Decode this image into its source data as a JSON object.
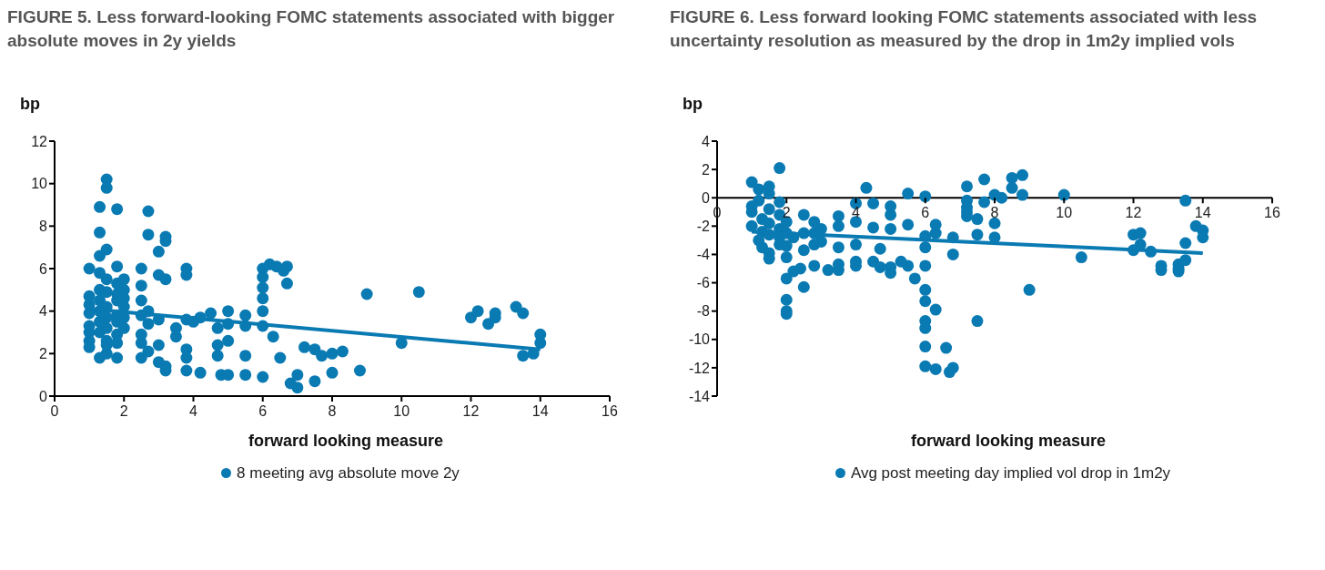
{
  "chart_data": [
    {
      "type": "scatter",
      "title": "FIGURE 5. Less forward-looking FOMC statements associated with bigger absolute moves in 2y yields",
      "xlabel": "forward looking measure",
      "ylabel": "bp",
      "xlim": [
        0,
        16
      ],
      "ylim": [
        0,
        12
      ],
      "xticks": [
        0,
        2,
        4,
        6,
        8,
        10,
        12,
        14,
        16
      ],
      "yticks": [
        0,
        2,
        4,
        6,
        8,
        10,
        12
      ],
      "grid": false,
      "legend": "bottom",
      "marker": "circle",
      "series": [
        {
          "name": "8 meeting avg absolute move 2y",
          "color": "#0a7ab3",
          "x": [
            1.0,
            1.0,
            1.0,
            1.0,
            1.0,
            1.0,
            1.0,
            1.0,
            1.3,
            1.3,
            1.3,
            1.3,
            1.3,
            1.3,
            1.3,
            1.3,
            1.3,
            1.3,
            1.5,
            1.5,
            1.5,
            1.5,
            1.5,
            1.5,
            1.5,
            1.5,
            1.5,
            1.5,
            1.5,
            1.8,
            1.8,
            1.8,
            1.8,
            1.8,
            1.8,
            1.8,
            1.8,
            1.8,
            1.8,
            2.0,
            2.0,
            2.0,
            2.0,
            2.0,
            2.0,
            2.5,
            2.5,
            2.5,
            2.5,
            2.5,
            2.5,
            2.5,
            2.7,
            2.7,
            2.7,
            2.7,
            2.7,
            3.0,
            3.0,
            3.0,
            3.0,
            3.0,
            3.2,
            3.2,
            3.2,
            3.2,
            3.2,
            3.5,
            3.5,
            3.8,
            3.8,
            3.8,
            3.8,
            3.8,
            3.8,
            4.0,
            4.2,
            4.2,
            4.5,
            4.7,
            4.7,
            4.7,
            4.8,
            5.0,
            5.0,
            5.0,
            5.0,
            5.5,
            5.5,
            5.5,
            5.5,
            6.0,
            6.0,
            6.0,
            6.0,
            6.0,
            6.0,
            6.0,
            6.2,
            6.4,
            6.6,
            6.7,
            6.7,
            6.3,
            6.5,
            6.8,
            7.0,
            7.0,
            7.2,
            7.5,
            7.5,
            7.7,
            8.0,
            8.3,
            8.0,
            8.8,
            9.0,
            10.0,
            10.5,
            12.0,
            12.2,
            12.5,
            12.7,
            12.7,
            13.3,
            13.5,
            13.5,
            13.8,
            14.0,
            14.0
          ],
          "values": [
            6.0,
            4.7,
            4.3,
            3.9,
            3.3,
            3.0,
            2.6,
            2.3,
            8.9,
            7.7,
            6.6,
            5.8,
            5.0,
            4.5,
            4.0,
            3.5,
            3.0,
            1.8,
            10.2,
            9.8,
            6.9,
            5.5,
            4.9,
            4.2,
            3.7,
            3.2,
            2.6,
            2.4,
            2.0,
            8.8,
            6.1,
            5.3,
            4.8,
            4.5,
            3.8,
            3.5,
            2.9,
            2.5,
            1.8,
            5.5,
            5.0,
            4.6,
            4.2,
            3.7,
            3.2,
            6.0,
            5.2,
            4.5,
            3.8,
            2.9,
            2.5,
            1.8,
            8.7,
            7.6,
            4.0,
            3.4,
            2.1,
            6.8,
            5.7,
            3.6,
            2.4,
            1.6,
            7.5,
            7.3,
            5.5,
            1.4,
            1.2,
            3.2,
            2.8,
            6.0,
            5.7,
            3.6,
            2.2,
            1.8,
            1.2,
            3.5,
            3.7,
            1.1,
            3.9,
            3.2,
            2.4,
            1.9,
            1.0,
            4.0,
            3.4,
            2.6,
            1.0,
            3.8,
            3.3,
            1.9,
            1.0,
            6.0,
            5.6,
            5.1,
            4.6,
            4.0,
            3.3,
            0.9,
            6.2,
            6.1,
            5.9,
            6.1,
            5.3,
            2.8,
            1.8,
            0.6,
            0.4,
            1.0,
            2.3,
            2.2,
            0.7,
            1.9,
            2.0,
            2.1,
            1.1,
            1.2,
            4.8,
            2.5,
            4.9,
            3.7,
            4.0,
            3.4,
            3.7,
            3.9,
            4.2,
            1.9,
            3.9,
            2.0,
            2.9,
            2.5
          ]
        },
        {
          "type": "line",
          "color": "#0a7ab3",
          "marker": "none",
          "x": [
            1,
            14
          ],
          "values": [
            4.1,
            2.2
          ]
        }
      ]
    },
    {
      "type": "scatter",
      "title": "FIGURE 6. Less forward looking FOMC statements associated with less uncertainty resolution as measured by the drop in 1m2y implied vols",
      "xlabel": "forward looking measure",
      "ylabel": "bp",
      "xlim": [
        0,
        16
      ],
      "ylim": [
        -14,
        4
      ],
      "xticks": [
        0,
        2,
        4,
        6,
        8,
        10,
        12,
        14,
        16
      ],
      "yticks": [
        -14,
        -12,
        -10,
        -8,
        -6,
        -4,
        -2,
        0,
        2,
        4
      ],
      "grid": false,
      "legend": "bottom",
      "marker": "circle",
      "series": [
        {
          "name": "Avg post meeting day implied vol drop in 1m2y",
          "color": "#0a7ab3",
          "x": [
            1.0,
            1.2,
            1.2,
            1.0,
            1.0,
            1.3,
            1.0,
            1.3,
            1.2,
            1.3,
            1.5,
            1.5,
            1.5,
            1.5,
            1.5,
            1.5,
            1.5,
            1.8,
            1.8,
            1.8,
            1.8,
            1.8,
            1.8,
            2.0,
            2.0,
            2.0,
            2.0,
            2.0,
            2.0,
            2.0,
            2.0,
            2.2,
            2.2,
            2.4,
            2.5,
            2.5,
            2.5,
            2.5,
            2.8,
            2.8,
            2.8,
            2.8,
            3.2,
            3.0,
            3.0,
            3.5,
            3.5,
            3.5,
            3.5,
            3.5,
            4.0,
            4.0,
            4.0,
            4.0,
            4.0,
            4.3,
            4.5,
            4.5,
            4.5,
            4.7,
            4.7,
            5.0,
            5.0,
            5.0,
            5.0,
            5.0,
            5.5,
            5.5,
            5.5,
            5.3,
            5.7,
            6.0,
            6.0,
            6.0,
            6.0,
            6.0,
            6.0,
            6.0,
            6.0,
            6.0,
            6.0,
            6.3,
            6.3,
            6.3,
            6.3,
            6.7,
            6.6,
            6.8,
            6.8,
            6.8,
            7.2,
            7.2,
            7.2,
            7.2,
            7.2,
            7.5,
            7.5,
            7.5,
            7.7,
            7.7,
            8.0,
            8.0,
            8.0,
            8.2,
            8.5,
            8.5,
            8.8,
            8.8,
            9.0,
            10.0,
            10.5,
            12.0,
            12.0,
            12.2,
            12.2,
            12.5,
            12.8,
            12.8,
            13.3,
            13.3,
            13.3,
            13.5,
            13.5,
            13.5,
            13.8,
            14.0,
            14.0
          ],
          "values": [
            1.1,
            0.6,
            -0.2,
            -0.6,
            -1.0,
            -1.5,
            -2.0,
            -2.4,
            -3.0,
            -3.5,
            0.8,
            0.3,
            -0.8,
            -1.8,
            -2.6,
            -3.9,
            -4.3,
            2.1,
            -0.3,
            -1.2,
            -2.2,
            -2.8,
            -3.3,
            -1.7,
            -2.5,
            -3.4,
            -4.2,
            -5.7,
            -7.2,
            -8.0,
            -8.2,
            -2.8,
            -5.2,
            -5.0,
            -6.3,
            -1.2,
            -2.5,
            -3.7,
            -1.7,
            -2.5,
            -3.3,
            -4.8,
            -5.1,
            -2.2,
            -3.1,
            -1.3,
            -2.0,
            -3.5,
            -4.7,
            -5.1,
            -0.4,
            -1.7,
            -3.3,
            -4.5,
            -4.8,
            0.7,
            -0.4,
            -2.1,
            -4.5,
            -4.9,
            -3.6,
            -1.2,
            -2.2,
            -4.9,
            -5.3,
            -0.6,
            0.3,
            -1.9,
            -4.8,
            -4.5,
            -5.7,
            0.1,
            -2.7,
            -3.5,
            -4.8,
            -6.5,
            -7.3,
            -8.7,
            -9.2,
            -10.5,
            -11.9,
            -1.9,
            -2.5,
            -7.9,
            -12.1,
            -12.3,
            -10.6,
            -12.0,
            -2.8,
            -4.0,
            0.8,
            -0.2,
            -0.7,
            -1.0,
            -1.3,
            -1.5,
            -2.6,
            -8.7,
            1.3,
            -0.3,
            0.2,
            -1.8,
            -2.8,
            0.0,
            1.4,
            0.7,
            1.6,
            0.2,
            -6.5,
            0.2,
            -4.2,
            -2.6,
            -3.7,
            -2.5,
            -3.3,
            -3.8,
            -4.8,
            -5.1,
            -4.7,
            -5.2,
            -5.0,
            -0.2,
            -3.2,
            -4.4,
            -2.0,
            -2.3,
            -2.8
          ]
        },
        {
          "type": "line",
          "color": "#0a7ab3",
          "marker": "none",
          "x": [
            1,
            14
          ],
          "values": [
            -2.4,
            -3.9
          ]
        }
      ]
    }
  ]
}
